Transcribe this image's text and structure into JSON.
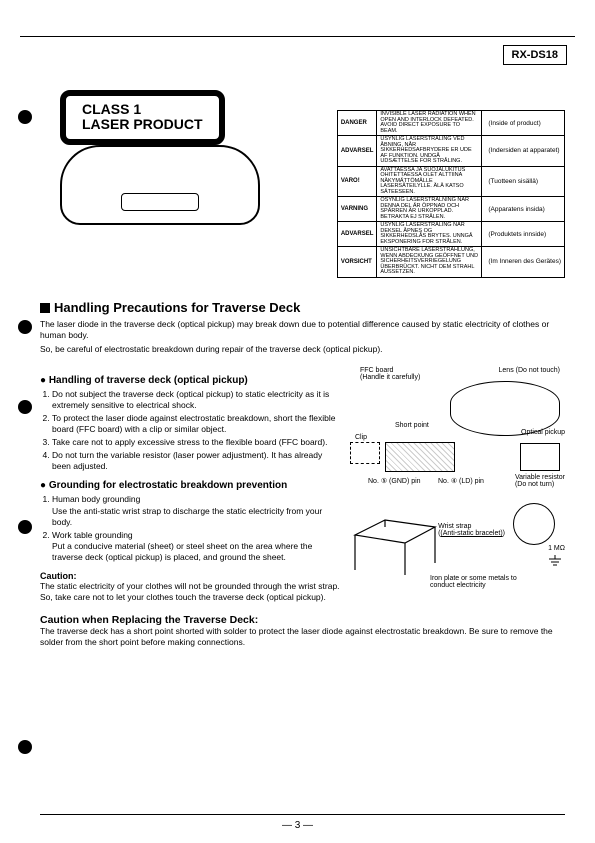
{
  "model": "RX-DS18",
  "class_label_line1": "CLASS 1",
  "class_label_line2": "LASER PRODUCT",
  "danger_rows": [
    {
      "label": "DANGER",
      "mid": "INVISIBLE LASER RADIATION WHEN OPEN AND INTERLOCK DEFEATED. AVOID DIRECT EXPOSURE TO BEAM.",
      "desc": "(Inside of product)"
    },
    {
      "label": "ADVARSEL",
      "mid": "USYNLIG LASERSTRÅLING VED ÅBNING, NÅR SIKKERHEDSAFBRYDERE ER UDE AF FUNKTION. UNDGÅ UDSÆTTELSE FOR STRÅLING.",
      "desc": "(Indersiden at apparatet)"
    },
    {
      "label": "VARO!",
      "mid": "AVATTAESSA JA SUOJALUKITUS OHITETTAESSA OLET ALTTIINA NÄKYMÄTTÖMÄLLE LASERSÄTEILYLLE. ÄLÄ KATSO SÄTEESEEN.",
      "desc": "(Tuotteen sisällä)"
    },
    {
      "label": "VARNING",
      "mid": "OSYNLIG LASERSTRÅLNING NÄR DENNA DEL ÄR ÖPPNAD OCH SPÄRREN ÄR URKOPPLAD. BETRAKTA EJ STRÅLEN.",
      "desc": "(Apparatens insida)"
    },
    {
      "label": "ADVARSEL",
      "mid": "USYNLIG LASERSTRÅLING NÅR DEKSEL ÅPNES OG SIKKERHEDSLÅS BRYTES. UNNGÅ EKSPONERING FOR STRÅLEN.",
      "desc": "(Produktets innside)"
    },
    {
      "label": "VORSICHT",
      "mid": "UNSICHTBARE LASERSTRAHLUNG, WENN ABDECKUNG GEÖFFNET UND SICHERHEITSVERRIEGELUNG ÜBERBRÜCKT. NICHT DEM STRAHL AUSSETZEN.",
      "desc": "(Im Inneren des Gerätes)"
    }
  ],
  "section_title": "Handling Precautions for Traverse Deck",
  "intro1": "The laser diode in the traverse deck (optical pickup) may break down due to potential difference caused by static electricity of clothes or human body.",
  "intro2": "So, be careful of electrostatic breakdown during repair of the traverse deck (optical pickup).",
  "sub1_title": "Handling of traverse deck (optical pickup)",
  "sub1_items": [
    "Do not subject the traverse deck (optical pickup) to static electricity as it is  extremely sensitive to electrical shock.",
    "To protect the laser diode against electrostatic breakdown, short the flexible board (FFC board) with a clip or similar object.",
    "Take care not to apply excessive stress to the flexible board (FFC board).",
    "Do not turn the variable resistor (laser power adjustment). It has already been adjusted."
  ],
  "sub2_title": "Grounding for electrostatic breakdown prevention",
  "sub2_item1_title": "Human body grounding",
  "sub2_item1_text": "Use the anti-static wrist strap to discharge the static electricity from your body.",
  "sub2_item2_title": "Work table grounding",
  "sub2_item2_text": "Put a conducive material (sheet) or steel sheet on the area where the traverse deck (optical pickup) is placed, and ground the  sheet.",
  "caution_label": "Caution:",
  "caution_text": "The static electricity of your clothes will not be grounded through the wrist strap. So, take care not to let your clothes touch the traverse deck (optical pickup).",
  "replace_title": "Caution when Replacing the Traverse Deck:",
  "replace_text": "The traverse deck has a  short point shorted with solder to protect the laser diode against electrostatic breakdown. Be sure to remove the solder from the short point before making connections.",
  "diagram_labels": {
    "ffc": "FFC board",
    "ffc2": "(Handle it carefully)",
    "lens": "Lens (Do not touch)",
    "short": "Short point",
    "optical": "Optical pickup",
    "clip": "Clip",
    "gnd": "No. ⑤ (GND) pin",
    "ld": "No. ④ (LD) pin",
    "varres": "Variable resistor",
    "varres2": "(Do not turn)",
    "wrist": "Wrist strap",
    "wrist2": "(Anti-static bracelet)",
    "ohm": "1 MΩ",
    "iron": "Iron plate or some metals to",
    "iron2": "conduct electricity"
  },
  "page_num": "— 3 —"
}
